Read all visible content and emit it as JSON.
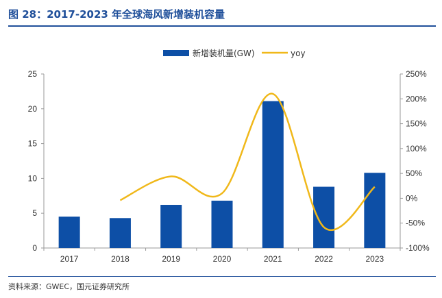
{
  "figure": {
    "title": "图 28：2017-2023 年全球海风新增装机容量",
    "source": "资料来源：GWEC，国元证券研究所"
  },
  "colors": {
    "bar": "#0d4fa6",
    "line": "#f0b81a",
    "title": "#1f4f9a",
    "axis": "#9a9a9a"
  },
  "chart_data": {
    "type": "bar",
    "categories": [
      "2017",
      "2018",
      "2019",
      "2020",
      "2021",
      "2022",
      "2023"
    ],
    "series": [
      {
        "name": "新增装机量(GW)",
        "type": "bar",
        "axis": "left",
        "values": [
          4.5,
          4.3,
          6.2,
          6.8,
          21.1,
          8.8,
          10.8
        ]
      },
      {
        "name": "yoy",
        "type": "line",
        "axis": "right",
        "values": [
          null,
          -4,
          44,
          10,
          210,
          -58,
          23
        ]
      }
    ],
    "ylim_left": [
      0,
      25
    ],
    "yticks_left": [
      "0",
      "5",
      "10",
      "15",
      "20",
      "25"
    ],
    "ylim_right": [
      -100,
      250
    ],
    "yticks_right": [
      "-100%",
      "-50%",
      "0%",
      "50%",
      "100%",
      "150%",
      "200%",
      "250%"
    ],
    "legend": "top-center",
    "grid": false
  }
}
